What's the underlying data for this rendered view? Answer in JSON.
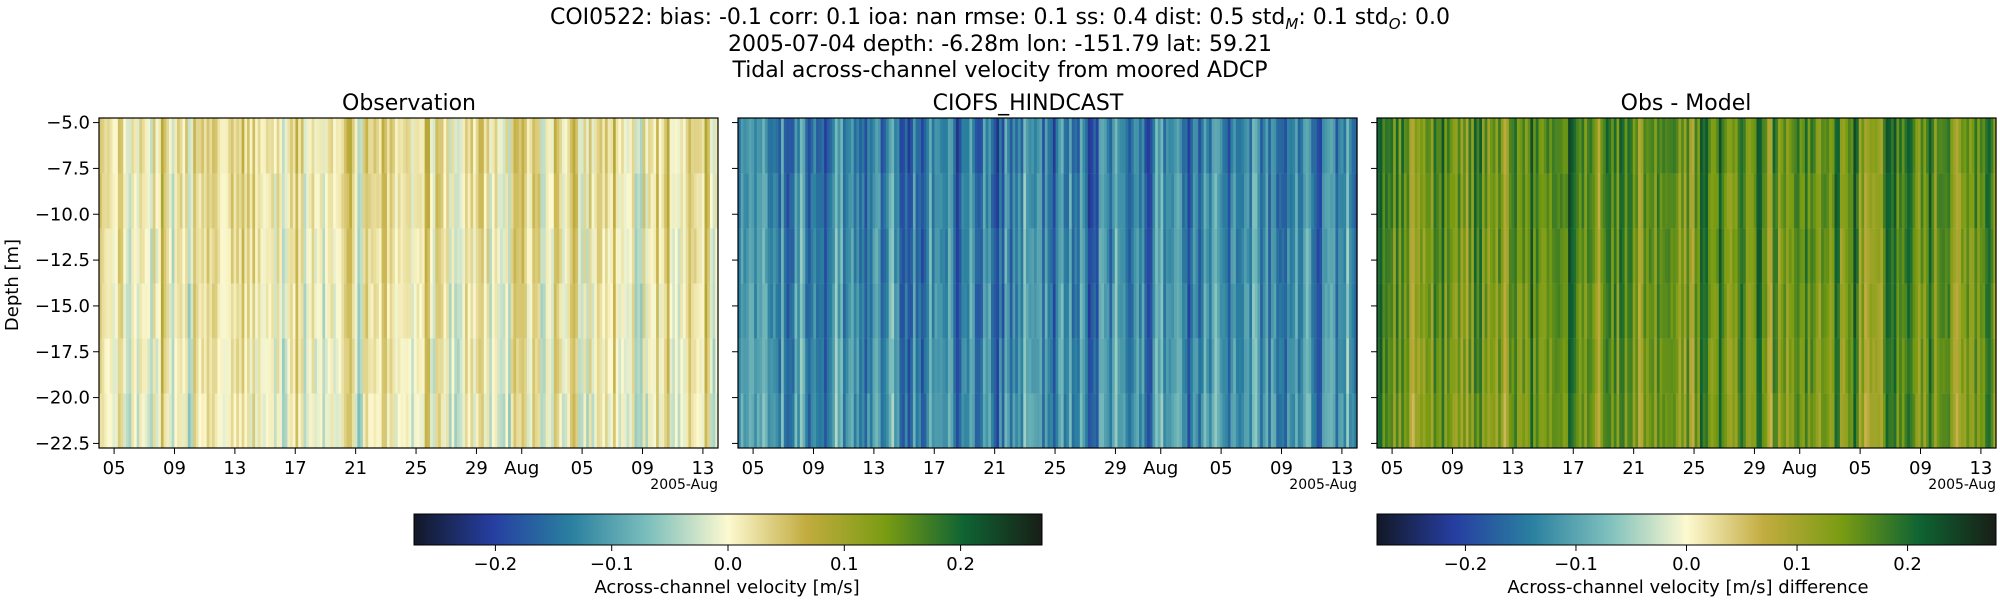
{
  "figure": {
    "title_lines": [
      "COI0522: bias: -0.1  corr: 0.1  ioa: nan  rmse: 0.1  ss: 0.4  dist: 0.5  std",
      "2005-07-04 depth: -6.28m lon: -151.79 lat: 59.21",
      "Tidal across-channel velocity from moored ADCP"
    ],
    "title_line1_tail": {
      "std_m_sub": "M",
      "std_m_value": ": 0.1  std",
      "std_o_sub": "O",
      "std_o_value": ": 0.0"
    }
  },
  "chart_data": [
    {
      "type": "heatmap",
      "title": "Observation",
      "ylabel": "Depth [m]",
      "xlabel": "",
      "ylim": [
        -22.75,
        -4.75
      ],
      "yticks": [
        -5.0,
        -7.5,
        -10.0,
        -12.5,
        -15.0,
        -17.5,
        -20.0,
        -22.5
      ],
      "ytick_labels": [
        "−5.0",
        "−7.5",
        "−10.0",
        "−12.5",
        "−15.0",
        "−17.5",
        "−20.0",
        "−22.5"
      ],
      "xlim": [
        "2005-07-04",
        "2005-08-14"
      ],
      "xtick_labels": [
        "05",
        "09",
        "13",
        "17",
        "21",
        "25",
        "29",
        "Aug",
        "05",
        "09",
        "13"
      ],
      "x_offset_label": "2005-Aug",
      "colormap": "delta",
      "vmin": -0.27,
      "vmax": 0.27,
      "depth_bins": [
        -6.28,
        -9.28,
        -12.28,
        -15.28,
        -18.28,
        -21.28
      ],
      "summary": {
        "mean": 0.02,
        "spread": 0.05
      }
    },
    {
      "type": "heatmap",
      "title": "CIOFS_HINDCAST",
      "xlim": [
        "2005-07-04",
        "2005-08-14"
      ],
      "xtick_labels": [
        "05",
        "09",
        "13",
        "17",
        "21",
        "25",
        "29",
        "Aug",
        "05",
        "09",
        "13"
      ],
      "x_offset_label": "2005-Aug",
      "colormap": "delta",
      "vmin": -0.27,
      "vmax": 0.27,
      "depth_bins": [
        -6.28,
        -9.28,
        -12.28,
        -15.28,
        -18.28,
        -21.28
      ],
      "summary": {
        "mean": -0.14,
        "spread": 0.06
      }
    },
    {
      "type": "heatmap",
      "title": "Obs - Model",
      "xlim": [
        "2005-07-04",
        "2005-08-14"
      ],
      "xtick_labels": [
        "05",
        "09",
        "13",
        "17",
        "21",
        "25",
        "29",
        "Aug",
        "05",
        "09",
        "13"
      ],
      "x_offset_label": "2005-Aug",
      "colormap": "delta",
      "vmin": -0.28,
      "vmax": 0.28,
      "depth_bins": [
        -6.28,
        -9.28,
        -12.28,
        -15.28,
        -18.28,
        -21.28
      ],
      "summary": {
        "mean": 0.16,
        "spread": 0.06
      }
    }
  ],
  "colorbars": [
    {
      "label": "Across-channel velocity [m/s]",
      "vmin": -0.27,
      "vmax": 0.27,
      "ticks": [
        -0.2,
        -0.1,
        0.0,
        0.1,
        0.2
      ],
      "tick_labels": [
        "−0.2",
        "−0.1",
        "0.0",
        "0.1",
        "0.2"
      ]
    },
    {
      "label": "Across-channel velocity [m/s] difference",
      "vmin": -0.28,
      "vmax": 0.28,
      "ticks": [
        -0.2,
        -0.1,
        0.0,
        0.1,
        0.2
      ],
      "tick_labels": [
        "−0.2",
        "−0.1",
        "0.0",
        "0.1",
        "0.2"
      ]
    }
  ],
  "colormap_stops": [
    "#121826",
    "#263ea1",
    "#2a80a0",
    "#7ec0bd",
    "#fdf9d0",
    "#c2ac40",
    "#7a9c12",
    "#0f6433",
    "#181e16"
  ]
}
